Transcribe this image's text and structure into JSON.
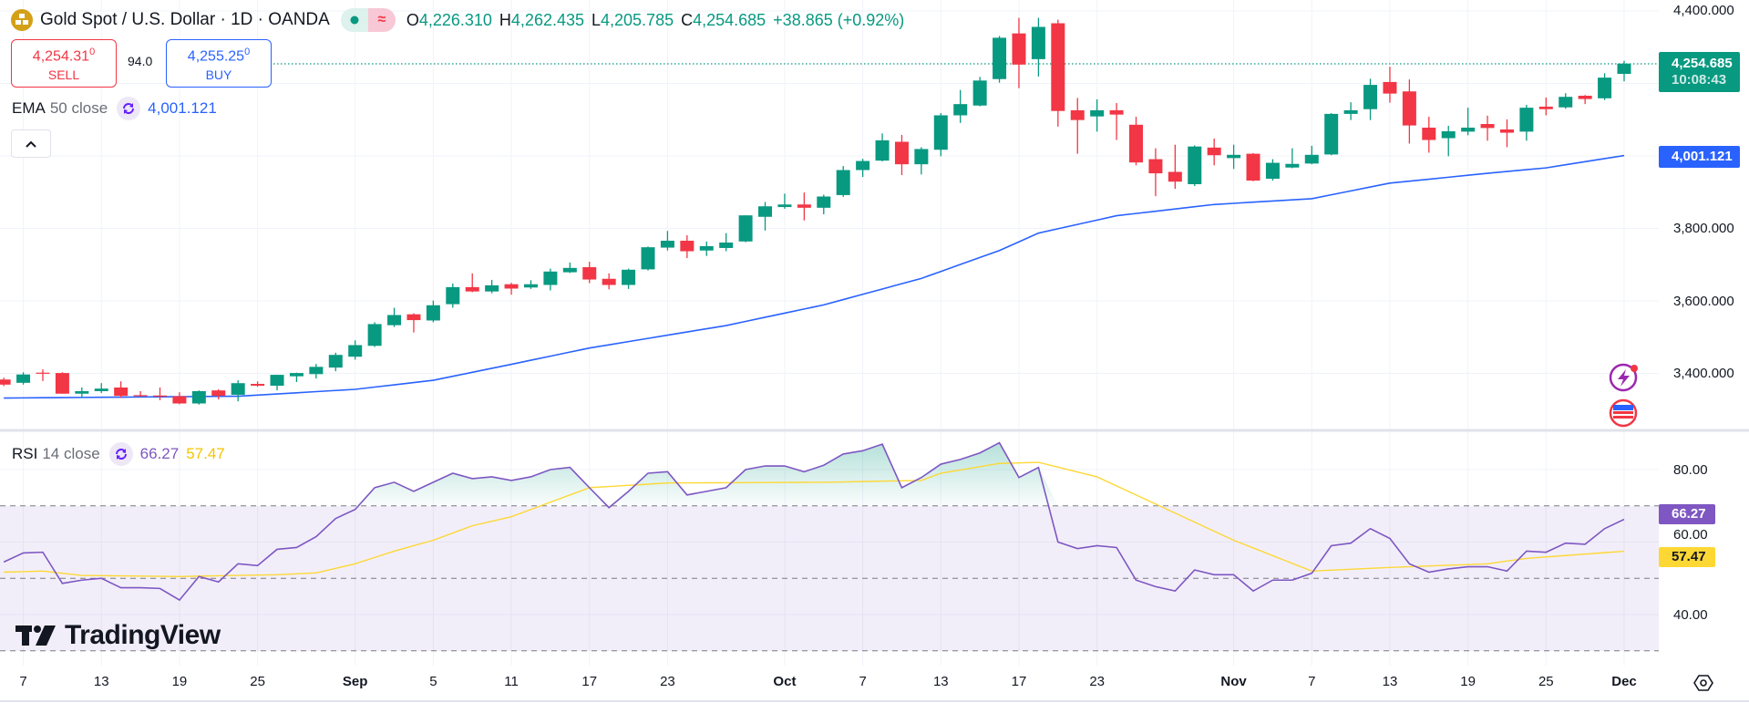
{
  "header": {
    "title": "Gold Spot / U.S. Dollar · 1D · OANDA",
    "logo_icon": "gold-bars-icon",
    "status_icons": [
      "market-open-dot-icon",
      "delayed-data-icon"
    ],
    "ohlc": {
      "o_label": "O",
      "o": "4,226.310",
      "h_label": "H",
      "h": "4,262.435",
      "l_label": "L",
      "l": "4,205.785",
      "c_label": "C",
      "c": "4,254.685",
      "change": "+38.865 (+0.92%)"
    }
  },
  "trade": {
    "sell_price": "4,254.31",
    "sell_price_sup": "0",
    "sell_label": "SELL",
    "spread": "94.0",
    "buy_price": "4,255.25",
    "buy_price_sup": "0",
    "buy_label": "BUY"
  },
  "ema_legend": {
    "name": "EMA",
    "params": "50 close",
    "value": "4,001.121"
  },
  "rsi_legend": {
    "name": "RSI",
    "params": "14 close",
    "value": "66.27",
    "ma_value": "57.47"
  },
  "price_axis": {
    "labels": [
      "4,400.000",
      "3,800.000",
      "3,600.000",
      "3,400.000"
    ],
    "last_price_tag": "4,254.685",
    "countdown": "10:08:43",
    "ema_tag": "4,001.121"
  },
  "rsi_axis": {
    "labels": [
      "80.00",
      "60.00",
      "40.00"
    ],
    "rsi_tag": "66.27",
    "ma_tag": "57.47"
  },
  "time_axis": {
    "labels": [
      {
        "text": "7",
        "date": "Aug 7"
      },
      {
        "text": "13",
        "date": "Aug 13"
      },
      {
        "text": "19",
        "date": "Aug 19"
      },
      {
        "text": "25",
        "date": "Aug 25"
      },
      {
        "text": "Sep",
        "date": "Sep 1"
      },
      {
        "text": "5",
        "date": "Sep 5"
      },
      {
        "text": "11",
        "date": "Sep 11"
      },
      {
        "text": "17",
        "date": "Sep 17"
      },
      {
        "text": "23",
        "date": "Sep 23"
      },
      {
        "text": "Oct",
        "date": "Oct 1"
      },
      {
        "text": "7",
        "date": "Oct 7"
      },
      {
        "text": "13",
        "date": "Oct 13"
      },
      {
        "text": "17",
        "date": "Oct 17"
      },
      {
        "text": "23",
        "date": "Oct 23"
      },
      {
        "text": "Nov",
        "date": "Nov 3"
      },
      {
        "text": "7",
        "date": "Nov 7"
      },
      {
        "text": "13",
        "date": "Nov 13"
      },
      {
        "text": "19",
        "date": "Nov 19"
      },
      {
        "text": "25",
        "date": "Nov 25"
      },
      {
        "text": "Dec",
        "date": "Dec 1"
      }
    ]
  },
  "branding": {
    "text": "TradingView"
  },
  "colors": {
    "up": "#089981",
    "down": "#f23645",
    "ema": "#2962ff",
    "rsi": "#7e57c2",
    "rsi_ma": "#fdd835",
    "grid": "#f0f3fa"
  },
  "chart_data": {
    "type": "candlestick",
    "price_range": [
      3300,
      4400
    ],
    "candle_fields": [
      "date",
      "open",
      "high",
      "low",
      "close"
    ],
    "candles": [
      [
        "Aug 6",
        3383,
        3388,
        3365,
        3369
      ],
      [
        "Aug 7",
        3374,
        3403,
        3369,
        3397
      ],
      [
        "Aug 8",
        3402,
        3411,
        3379,
        3399
      ],
      [
        "Aug 11",
        3401,
        3403,
        3344,
        3344
      ],
      [
        "Aug 12",
        3344,
        3361,
        3334,
        3351
      ],
      [
        "Aug 13",
        3351,
        3373,
        3346,
        3358
      ],
      [
        "Aug 14",
        3361,
        3378,
        3333,
        3338
      ],
      [
        "Aug 15",
        3340,
        3351,
        3336,
        3338
      ],
      [
        "Aug 18",
        3339,
        3361,
        3326,
        3337
      ],
      [
        "Aug 19",
        3337,
        3348,
        3315,
        3317
      ],
      [
        "Aug 20",
        3317,
        3353,
        3314,
        3351
      ],
      [
        "Aug 21",
        3353,
        3356,
        3328,
        3338
      ],
      [
        "Aug 22",
        3341,
        3381,
        3323,
        3373
      ],
      [
        "Aug 25",
        3371,
        3378,
        3363,
        3366
      ],
      [
        "Aug 26",
        3366,
        3396,
        3353,
        3396
      ],
      [
        "Aug 27",
        3392,
        3402,
        3376,
        3401
      ],
      [
        "Aug 28",
        3398,
        3426,
        3386,
        3418
      ],
      [
        "Aug 29",
        3416,
        3457,
        3406,
        3451
      ],
      [
        "Sep 1",
        3446,
        3491,
        3438,
        3478
      ],
      [
        "Sep 2",
        3476,
        3541,
        3473,
        3536
      ],
      [
        "Sep 3",
        3533,
        3581,
        3528,
        3561
      ],
      [
        "Sep 4",
        3563,
        3566,
        3513,
        3547
      ],
      [
        "Sep 5",
        3546,
        3601,
        3541,
        3588
      ],
      [
        "Sep 8",
        3591,
        3648,
        3581,
        3638
      ],
      [
        "Sep 9",
        3638,
        3676,
        3624,
        3626
      ],
      [
        "Sep 10",
        3626,
        3658,
        3621,
        3643
      ],
      [
        "Sep 11",
        3646,
        3650,
        3617,
        3634
      ],
      [
        "Sep 12",
        3637,
        3657,
        3633,
        3646
      ],
      [
        "Sep 15",
        3644,
        3689,
        3629,
        3681
      ],
      [
        "Sep 16",
        3679,
        3706,
        3677,
        3691
      ],
      [
        "Sep 17",
        3693,
        3708,
        3649,
        3659
      ],
      [
        "Sep 18",
        3661,
        3676,
        3632,
        3644
      ],
      [
        "Sep 19",
        3644,
        3689,
        3633,
        3686
      ],
      [
        "Sep 22",
        3687,
        3750,
        3684,
        3748
      ],
      [
        "Sep 23",
        3747,
        3793,
        3739,
        3766
      ],
      [
        "Sep 24",
        3766,
        3781,
        3718,
        3737
      ],
      [
        "Sep 25",
        3739,
        3764,
        3724,
        3751
      ],
      [
        "Sep 26",
        3746,
        3787,
        3737,
        3761
      ],
      [
        "Sep 29",
        3764,
        3836,
        3762,
        3836
      ],
      [
        "Sep 30",
        3832,
        3873,
        3794,
        3861
      ],
      [
        "Oct 1",
        3859,
        3896,
        3854,
        3866
      ],
      [
        "Oct 2",
        3866,
        3899,
        3822,
        3857
      ],
      [
        "Oct 3",
        3857,
        3893,
        3839,
        3888
      ],
      [
        "Oct 6",
        3892,
        3972,
        3887,
        3961
      ],
      [
        "Oct 7",
        3961,
        3992,
        3942,
        3986
      ],
      [
        "Oct 8",
        3987,
        4062,
        3985,
        4043
      ],
      [
        "Oct 9",
        4039,
        4058,
        3947,
        3977
      ],
      [
        "Oct 10",
        3977,
        4024,
        3949,
        4019
      ],
      [
        "Oct 13",
        4017,
        4118,
        3999,
        4112
      ],
      [
        "Oct 14",
        4112,
        4182,
        4091,
        4143
      ],
      [
        "Oct 15",
        4139,
        4218,
        4137,
        4208
      ],
      [
        "Oct 16",
        4212,
        4331,
        4202,
        4326
      ],
      [
        "Oct 17",
        4338,
        4381,
        4187,
        4252
      ],
      [
        "Oct 20",
        4267,
        4381,
        4219,
        4356
      ],
      [
        "Oct 21",
        4366,
        4376,
        4081,
        4124
      ],
      [
        "Oct 22",
        4126,
        4160,
        4006,
        4099
      ],
      [
        "Oct 23",
        4109,
        4156,
        4067,
        4126
      ],
      [
        "Oct 24",
        4126,
        4146,
        4044,
        4114
      ],
      [
        "Oct 27",
        4086,
        4108,
        3974,
        3982
      ],
      [
        "Oct 28",
        3991,
        4021,
        3889,
        3952
      ],
      [
        "Oct 29",
        3956,
        4031,
        3909,
        3929
      ],
      [
        "Oct 30",
        3922,
        4029,
        3917,
        4026
      ],
      [
        "Oct 31",
        4023,
        4048,
        3974,
        4002
      ],
      [
        "Nov 3",
        3994,
        4031,
        3964,
        4003
      ],
      [
        "Nov 4",
        4006,
        4008,
        3930,
        3932
      ],
      [
        "Nov 5",
        3937,
        3991,
        3932,
        3981
      ],
      [
        "Nov 6",
        3968,
        4021,
        3966,
        3978
      ],
      [
        "Nov 7",
        3979,
        4028,
        3977,
        4003
      ],
      [
        "Nov 10",
        4004,
        4118,
        4002,
        4116
      ],
      [
        "Nov 11",
        4116,
        4148,
        4099,
        4126
      ],
      [
        "Nov 12",
        4129,
        4213,
        4099,
        4196
      ],
      [
        "Nov 13",
        4204,
        4246,
        4147,
        4172
      ],
      [
        "Nov 14",
        4178,
        4211,
        4034,
        4084
      ],
      [
        "Nov 17",
        4078,
        4108,
        4009,
        4044
      ],
      [
        "Nov 18",
        4049,
        4083,
        3999,
        4068
      ],
      [
        "Nov 19",
        4067,
        4133,
        4057,
        4078
      ],
      [
        "Nov 20",
        4088,
        4111,
        4042,
        4077
      ],
      [
        "Nov 21",
        4073,
        4101,
        4024,
        4064
      ],
      [
        "Nov 24",
        4067,
        4141,
        4042,
        4133
      ],
      [
        "Nov 25",
        4136,
        4161,
        4112,
        4129
      ],
      [
        "Nov 26",
        4134,
        4173,
        4130,
        4163
      ],
      [
        "Nov 27",
        4166,
        4168,
        4143,
        4157
      ],
      [
        "Nov 28",
        4159,
        4228,
        4154,
        4216
      ],
      [
        "Dec 1",
        4226.31,
        4262.435,
        4205.785,
        4254.685
      ]
    ],
    "ema50": [
      [
        "Aug 6",
        3332
      ],
      [
        "Aug 22",
        3337
      ],
      [
        "Sep 1",
        3356
      ],
      [
        "Sep 5",
        3381
      ],
      [
        "Sep 11",
        3425
      ],
      [
        "Sep 17",
        3470
      ],
      [
        "Sep 26",
        3532
      ],
      [
        "Oct 3",
        3589
      ],
      [
        "Oct 10",
        3662
      ],
      [
        "Oct 16",
        3739
      ],
      [
        "Oct 20",
        3787
      ],
      [
        "Oct 24",
        3835
      ],
      [
        "Oct 31",
        3866
      ],
      [
        "Nov 7",
        3882
      ],
      [
        "Nov 13",
        3925
      ],
      [
        "Nov 20",
        3952
      ],
      [
        "Nov 25",
        3967
      ],
      [
        "Dec 1",
        4001.121
      ]
    ],
    "rsi_range": [
      30,
      90
    ],
    "rsi_levels": [
      70,
      50,
      30
    ],
    "rsi": [
      54.5,
      57,
      57.2,
      48.6,
      49.5,
      50,
      47.4,
      47.4,
      47.2,
      44,
      50.5,
      49,
      54,
      53.5,
      58,
      58.5,
      61.5,
      66.5,
      69,
      75,
      76.5,
      74,
      76.5,
      79,
      77.5,
      78,
      77,
      78,
      80,
      80.6,
      75,
      69.5,
      74,
      79,
      79.4,
      73,
      74,
      75,
      80,
      81,
      81,
      79.4,
      81.2,
      84.3,
      85.2,
      87,
      75,
      77.8,
      81.5,
      82.8,
      84.6,
      87.4,
      77.8,
      80.6,
      60,
      58.2,
      59,
      58.5,
      49.5,
      47.7,
      46.5,
      52.3,
      51,
      51,
      46.5,
      49.5,
      49.5,
      51.4,
      59,
      59.7,
      63.7,
      61,
      54,
      51.7,
      52.6,
      53.2,
      53.2,
      52,
      57.5,
      57.2,
      59.7,
      59.4,
      63.7,
      66.27
    ],
    "rsi_ma": [
      [
        "Aug 6",
        51.7
      ],
      [
        "Aug 8",
        52
      ],
      [
        "Aug 12",
        50.8
      ],
      [
        "Aug 19",
        50.5
      ],
      [
        "Aug 26",
        51
      ],
      [
        "Aug 28",
        51.5
      ],
      [
        "Sep 1",
        54
      ],
      [
        "Sep 3",
        57.5
      ],
      [
        "Sep 5",
        60.5
      ],
      [
        "Sep 9",
        64.5
      ],
      [
        "Sep 11",
        67
      ],
      [
        "Sep 15",
        71
      ],
      [
        "Sep 17",
        75
      ],
      [
        "Sep 23",
        76.3
      ],
      [
        "Oct 3",
        76.5
      ],
      [
        "Oct 10",
        77
      ],
      [
        "Oct 13",
        79
      ],
      [
        "Oct 16",
        81.7
      ],
      [
        "Oct 20",
        82
      ],
      [
        "Oct 23",
        78
      ],
      [
        "Oct 27",
        73
      ],
      [
        "Oct 29",
        68
      ],
      [
        "Nov 3",
        60.5
      ],
      [
        "Nov 7",
        52
      ],
      [
        "Nov 13",
        53
      ],
      [
        "Nov 20",
        54
      ],
      [
        "Nov 24",
        55.5
      ],
      [
        "Dec 1",
        57.47
      ]
    ]
  }
}
